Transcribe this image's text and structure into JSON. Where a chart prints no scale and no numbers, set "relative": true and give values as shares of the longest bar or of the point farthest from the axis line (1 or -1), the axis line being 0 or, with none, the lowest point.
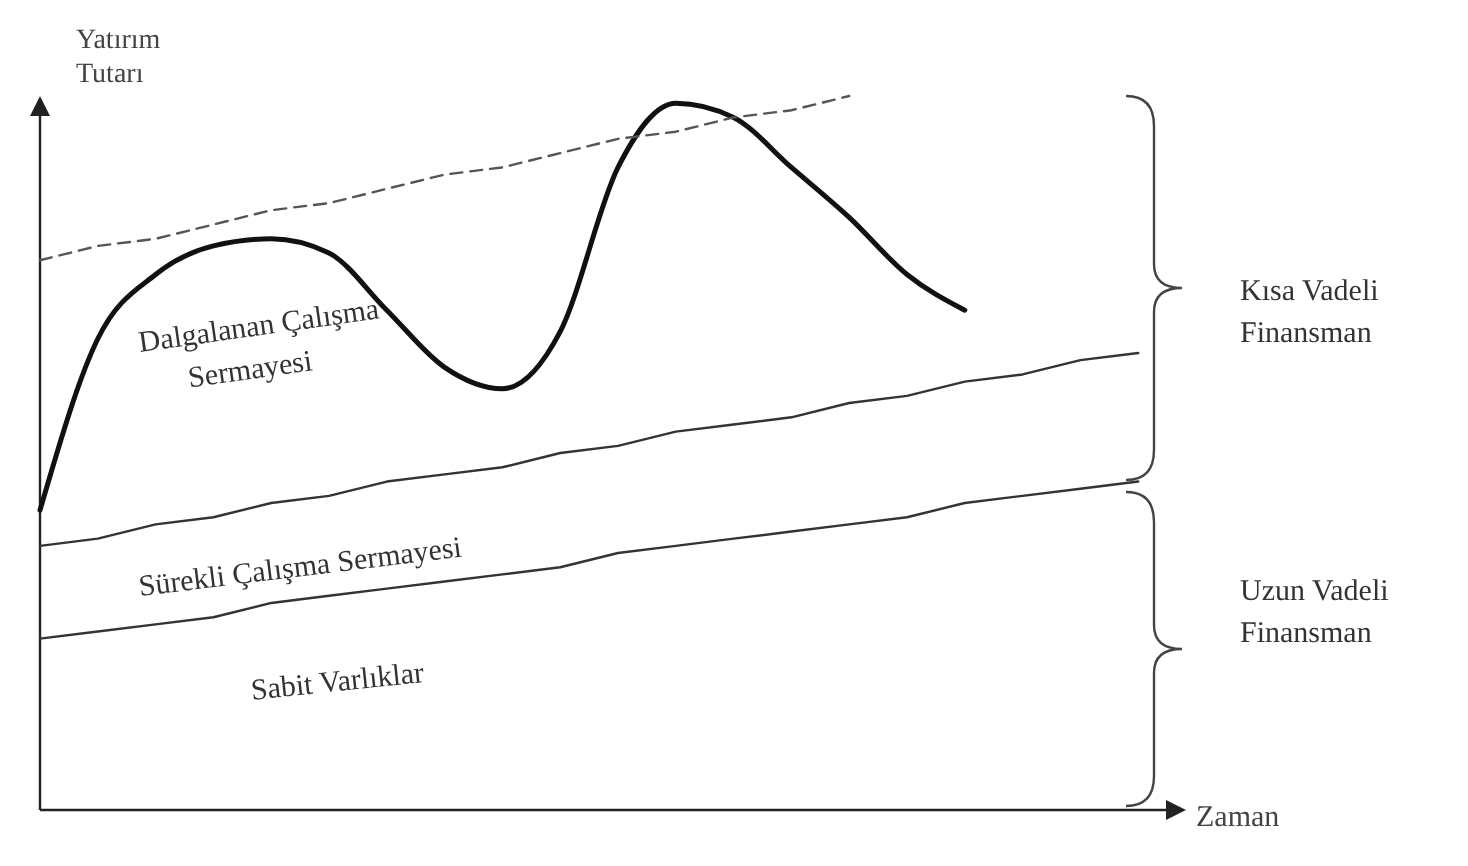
{
  "chart_data": {
    "type": "line",
    "relative": true,
    "xlabel": "Zaman",
    "ylabel": "Yatırım Tutarı",
    "marker": "none",
    "categories": [
      null,
      null,
      null,
      null,
      null,
      null,
      null,
      null,
      null,
      null,
      null,
      null,
      null,
      null,
      null,
      null,
      null,
      null,
      null,
      null,
      null
    ],
    "series": [
      {
        "color": "#111111",
        "values": [
          0.42,
          0.66,
          0.75,
          0.79,
          0.8,
          0.78,
          0.7,
          0.62,
          0.59,
          0.67,
          0.9,
          0.99,
          0.97,
          0.9,
          0.83,
          0.75,
          0.7,
          null,
          null,
          null,
          null
        ]
      },
      {
        "color": "#555555",
        "line_style": "dashed",
        "values": [
          0.77,
          0.79,
          0.8,
          0.82,
          0.84,
          0.85,
          0.87,
          0.89,
          0.9,
          0.92,
          0.94,
          0.95,
          0.97,
          0.98,
          1.0,
          null,
          null,
          null,
          null,
          null,
          null
        ]
      },
      {
        "color": "#333333",
        "values": [
          0.37,
          0.38,
          0.4,
          0.41,
          0.43,
          0.44,
          0.46,
          0.47,
          0.48,
          0.5,
          0.51,
          0.53,
          0.54,
          0.55,
          0.57,
          0.58,
          0.6,
          0.61,
          0.63,
          0.64,
          null
        ]
      },
      {
        "color": "#333333",
        "values": [
          0.24,
          0.25,
          0.26,
          0.27,
          0.29,
          0.3,
          0.31,
          0.32,
          0.33,
          0.34,
          0.36,
          0.37,
          0.38,
          0.39,
          0.4,
          0.41,
          0.43,
          0.44,
          0.45,
          0.46,
          null
        ]
      }
    ],
    "annotations": [
      "Dalgalanan Çalışma Sermayesi",
      "Sürekli Çalışma Sermayesi",
      "Sabit Varlıklar",
      "Kısa Vadeli Finansman",
      "Uzun Vadeli Finansman"
    ]
  }
}
